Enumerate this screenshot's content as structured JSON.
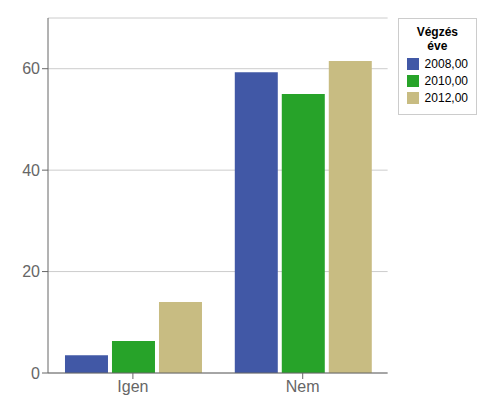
{
  "chart_data": {
    "type": "bar",
    "categories": [
      "Igen",
      "Nem"
    ],
    "series": [
      {
        "name": "2008,00",
        "color": "#4158A6",
        "values": [
          3.5,
          59.3
        ]
      },
      {
        "name": "2010,00",
        "color": "#27A329",
        "values": [
          6.3,
          55.0
        ]
      },
      {
        "name": "2012,00",
        "color": "#C8BC82",
        "values": [
          14.0,
          61.5
        ]
      }
    ],
    "legend_title": "Végzés\néve",
    "ylim": [
      0,
      70
    ],
    "yticks": [
      0,
      20,
      40,
      60
    ],
    "grid": true,
    "legend": "upper right"
  }
}
